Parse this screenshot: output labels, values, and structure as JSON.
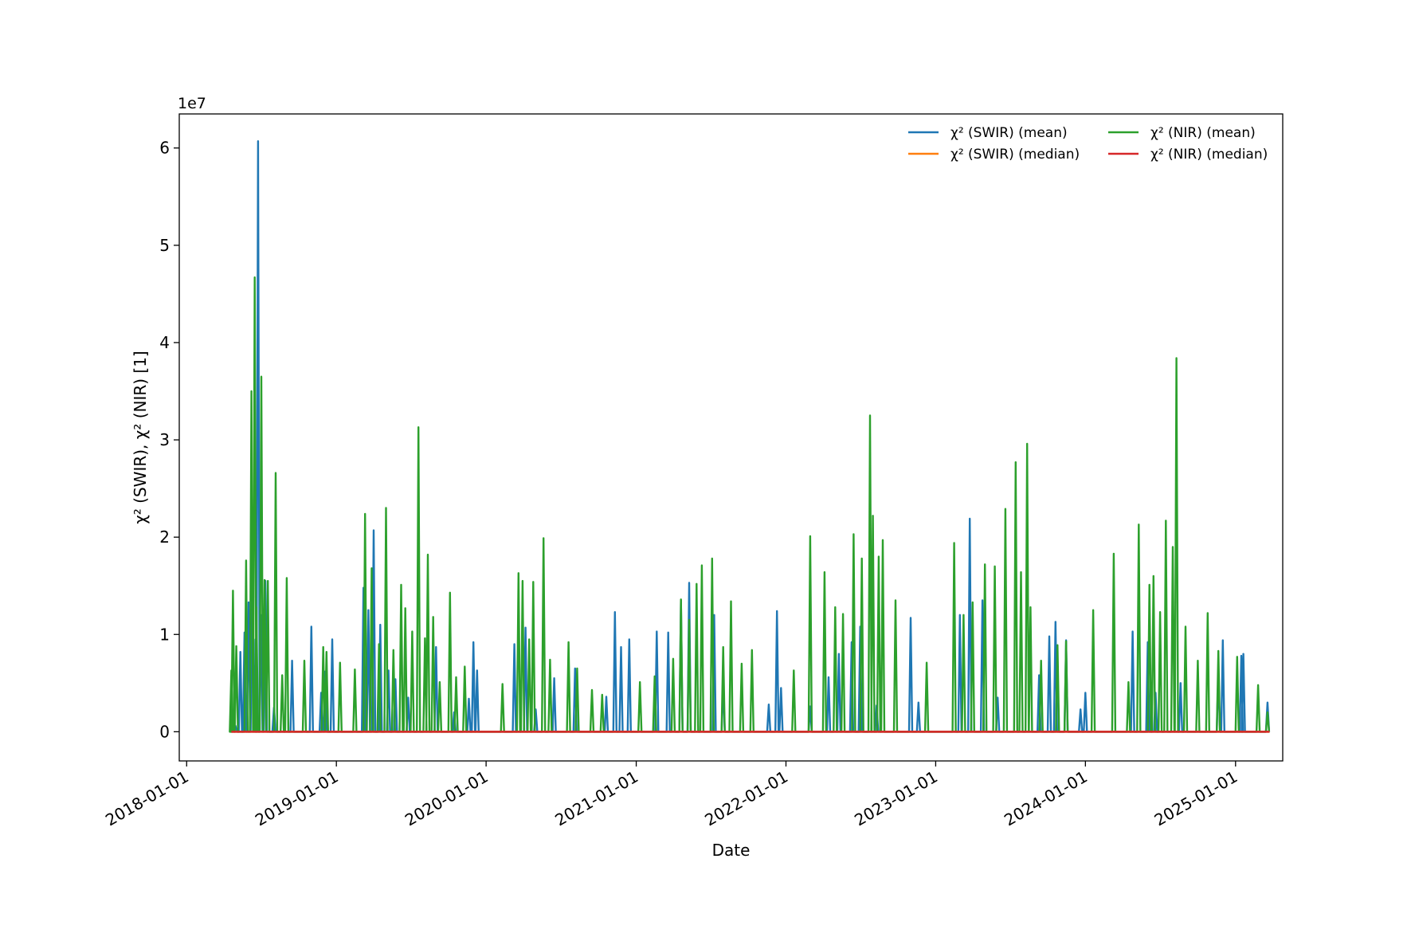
{
  "chart_data": {
    "type": "line",
    "title": "",
    "xlabel": "Date",
    "ylabel": "χ² (SWIR), χ² (NIR) [1]",
    "y_offset_label": "1e7",
    "x_axis_type": "date",
    "xlim": [
      "2017-12-14",
      "2025-04-26"
    ],
    "ylim": [
      -3000000,
      63500000
    ],
    "x_ticks": [
      "2018-01-01",
      "2019-01-01",
      "2020-01-01",
      "2021-01-01",
      "2022-01-01",
      "2023-01-01",
      "2024-01-01",
      "2025-01-01"
    ],
    "y_ticks": [
      0,
      10000000,
      20000000,
      30000000,
      40000000,
      50000000,
      60000000
    ],
    "y_tick_labels": [
      "0",
      "1",
      "2",
      "3",
      "4",
      "5",
      "6"
    ],
    "grid": false,
    "legend": {
      "placement": "upper right",
      "columns": 2
    },
    "series": [
      {
        "name": "χ² (SWIR) (mean)",
        "color": "#1f77b4",
        "points": [
          [
            "2018-04-30",
            600000
          ],
          [
            "2018-05-12",
            8200000
          ],
          [
            "2018-05-22",
            10200000
          ],
          [
            "2018-06-01",
            13300000
          ],
          [
            "2018-06-10",
            17500000
          ],
          [
            "2018-06-18",
            9500000
          ],
          [
            "2018-06-24",
            60700000
          ],
          [
            "2018-07-01",
            12000000
          ],
          [
            "2018-07-12",
            15500000
          ],
          [
            "2018-08-02",
            2500000
          ],
          [
            "2018-09-15",
            7300000
          ],
          [
            "2018-11-01",
            10800000
          ],
          [
            "2018-11-25",
            4000000
          ],
          [
            "2018-12-05",
            6200000
          ],
          [
            "2018-12-22",
            9500000
          ],
          [
            "2019-03-08",
            14800000
          ],
          [
            "2019-03-20",
            12500000
          ],
          [
            "2019-04-02",
            20700000
          ],
          [
            "2019-04-18",
            11000000
          ],
          [
            "2019-05-08",
            6300000
          ],
          [
            "2019-05-25",
            5400000
          ],
          [
            "2019-06-25",
            3500000
          ],
          [
            "2019-09-01",
            8700000
          ],
          [
            "2019-10-15",
            2000000
          ],
          [
            "2019-11-20",
            3400000
          ],
          [
            "2019-12-01",
            9200000
          ],
          [
            "2019-12-10",
            6300000
          ],
          [
            "2020-03-10",
            9000000
          ],
          [
            "2020-04-06",
            10700000
          ],
          [
            "2020-05-01",
            2300000
          ],
          [
            "2020-06-15",
            5500000
          ],
          [
            "2020-08-05",
            6500000
          ],
          [
            "2020-10-20",
            3600000
          ],
          [
            "2020-11-10",
            12300000
          ],
          [
            "2020-11-25",
            8700000
          ],
          [
            "2020-12-15",
            9500000
          ],
          [
            "2021-02-20",
            10300000
          ],
          [
            "2021-03-20",
            10200000
          ],
          [
            "2021-04-20",
            13500000
          ],
          [
            "2021-05-10",
            15300000
          ],
          [
            "2021-07-10",
            12000000
          ],
          [
            "2021-08-01",
            5000000
          ],
          [
            "2021-11-20",
            2800000
          ],
          [
            "2021-12-10",
            12400000
          ],
          [
            "2021-12-20",
            4500000
          ],
          [
            "2022-03-01",
            2600000
          ],
          [
            "2022-04-15",
            5600000
          ],
          [
            "2022-05-10",
            8000000
          ],
          [
            "2022-06-10",
            9200000
          ],
          [
            "2022-07-01",
            10800000
          ],
          [
            "2022-08-10",
            2700000
          ],
          [
            "2022-11-01",
            11700000
          ],
          [
            "2022-11-20",
            3000000
          ],
          [
            "2023-03-01",
            12000000
          ],
          [
            "2023-03-25",
            21900000
          ],
          [
            "2023-04-25",
            13500000
          ],
          [
            "2023-06-01",
            3500000
          ],
          [
            "2023-09-10",
            5800000
          ],
          [
            "2023-10-05",
            9800000
          ],
          [
            "2023-10-20",
            11300000
          ],
          [
            "2023-11-15",
            9400000
          ],
          [
            "2023-12-20",
            2300000
          ],
          [
            "2024-01-01",
            4000000
          ],
          [
            "2024-04-25",
            10300000
          ],
          [
            "2024-06-01",
            9200000
          ],
          [
            "2024-06-20",
            4000000
          ],
          [
            "2024-08-20",
            5000000
          ],
          [
            "2024-11-20",
            6200000
          ],
          [
            "2024-12-01",
            9400000
          ],
          [
            "2025-01-15",
            7800000
          ],
          [
            "2025-01-20",
            8000000
          ],
          [
            "2025-03-20",
            3000000
          ]
        ]
      },
      {
        "name": "χ² (SWIR) (median)",
        "color": "#ff7f0e",
        "points": [
          [
            "2018-04-20",
            0
          ],
          [
            "2025-03-25",
            0
          ]
        ]
      },
      {
        "name": "χ² (NIR) (mean)",
        "color": "#2ca02c",
        "points": [
          [
            "2018-04-20",
            6300000
          ],
          [
            "2018-04-24",
            14500000
          ],
          [
            "2018-05-02",
            8800000
          ],
          [
            "2018-05-26",
            17600000
          ],
          [
            "2018-06-08",
            35000000
          ],
          [
            "2018-06-16",
            46700000
          ],
          [
            "2018-06-20",
            12800000
          ],
          [
            "2018-07-02",
            36500000
          ],
          [
            "2018-07-10",
            15600000
          ],
          [
            "2018-07-18",
            15500000
          ],
          [
            "2018-08-06",
            26600000
          ],
          [
            "2018-08-22",
            5800000
          ],
          [
            "2018-09-02",
            15800000
          ],
          [
            "2018-10-15",
            7300000
          ],
          [
            "2018-11-30",
            8700000
          ],
          [
            "2018-12-08",
            8200000
          ],
          [
            "2019-01-10",
            7100000
          ],
          [
            "2019-02-15",
            6400000
          ],
          [
            "2019-03-12",
            22400000
          ],
          [
            "2019-03-28",
            16800000
          ],
          [
            "2019-04-15",
            9000000
          ],
          [
            "2019-05-02",
            23000000
          ],
          [
            "2019-05-20",
            8400000
          ],
          [
            "2019-06-08",
            15100000
          ],
          [
            "2019-06-18",
            12700000
          ],
          [
            "2019-07-05",
            10300000
          ],
          [
            "2019-07-20",
            31300000
          ],
          [
            "2019-08-05",
            9600000
          ],
          [
            "2019-08-12",
            18200000
          ],
          [
            "2019-08-25",
            11800000
          ],
          [
            "2019-09-10",
            5100000
          ],
          [
            "2019-10-05",
            14300000
          ],
          [
            "2019-10-20",
            5600000
          ],
          [
            "2019-11-10",
            6700000
          ],
          [
            "2020-02-10",
            4900000
          ],
          [
            "2020-03-20",
            16300000
          ],
          [
            "2020-03-30",
            15500000
          ],
          [
            "2020-04-15",
            9500000
          ],
          [
            "2020-04-25",
            15400000
          ],
          [
            "2020-05-20",
            19900000
          ],
          [
            "2020-06-05",
            7400000
          ],
          [
            "2020-07-20",
            9200000
          ],
          [
            "2020-08-10",
            6500000
          ],
          [
            "2020-09-15",
            4300000
          ],
          [
            "2020-10-10",
            3800000
          ],
          [
            "2021-01-10",
            5100000
          ],
          [
            "2021-02-15",
            5700000
          ],
          [
            "2021-04-01",
            7500000
          ],
          [
            "2021-04-20",
            13600000
          ],
          [
            "2021-05-10",
            11500000
          ],
          [
            "2021-05-28",
            15200000
          ],
          [
            "2021-06-10",
            17100000
          ],
          [
            "2021-07-05",
            17800000
          ],
          [
            "2021-08-01",
            8700000
          ],
          [
            "2021-08-20",
            13400000
          ],
          [
            "2021-09-15",
            7000000
          ],
          [
            "2021-10-10",
            8400000
          ],
          [
            "2022-01-20",
            6300000
          ],
          [
            "2022-03-01",
            20100000
          ],
          [
            "2022-04-05",
            16400000
          ],
          [
            "2022-05-01",
            12800000
          ],
          [
            "2022-05-20",
            12100000
          ],
          [
            "2022-06-15",
            20300000
          ],
          [
            "2022-07-05",
            17800000
          ],
          [
            "2022-07-25",
            32500000
          ],
          [
            "2022-08-01",
            22200000
          ],
          [
            "2022-08-15",
            18000000
          ],
          [
            "2022-08-25",
            19700000
          ],
          [
            "2022-09-25",
            13500000
          ],
          [
            "2022-12-10",
            7100000
          ],
          [
            "2023-02-15",
            19400000
          ],
          [
            "2023-03-10",
            12000000
          ],
          [
            "2023-04-01",
            13300000
          ],
          [
            "2023-05-01",
            17200000
          ],
          [
            "2023-05-25",
            17000000
          ],
          [
            "2023-06-20",
            22900000
          ],
          [
            "2023-07-15",
            27700000
          ],
          [
            "2023-07-28",
            16400000
          ],
          [
            "2023-08-12",
            29600000
          ],
          [
            "2023-08-20",
            12800000
          ],
          [
            "2023-09-15",
            7300000
          ],
          [
            "2023-10-25",
            8900000
          ],
          [
            "2023-11-15",
            9300000
          ],
          [
            "2024-01-20",
            12500000
          ],
          [
            "2024-03-10",
            18300000
          ],
          [
            "2024-04-15",
            5100000
          ],
          [
            "2024-05-10",
            21300000
          ],
          [
            "2024-06-05",
            15100000
          ],
          [
            "2024-06-15",
            16000000
          ],
          [
            "2024-07-01",
            12300000
          ],
          [
            "2024-07-15",
            21700000
          ],
          [
            "2024-08-01",
            19000000
          ],
          [
            "2024-08-10",
            38400000
          ],
          [
            "2024-09-01",
            10800000
          ],
          [
            "2024-10-01",
            7300000
          ],
          [
            "2024-10-25",
            12200000
          ],
          [
            "2024-11-20",
            8300000
          ],
          [
            "2025-01-05",
            7700000
          ],
          [
            "2025-02-25",
            4800000
          ],
          [
            "2025-03-20",
            2000000
          ]
        ]
      },
      {
        "name": "χ² (NIR) (median)",
        "color": "#d62728",
        "points": [
          [
            "2018-04-20",
            0
          ],
          [
            "2025-03-25",
            0
          ]
        ]
      }
    ]
  }
}
